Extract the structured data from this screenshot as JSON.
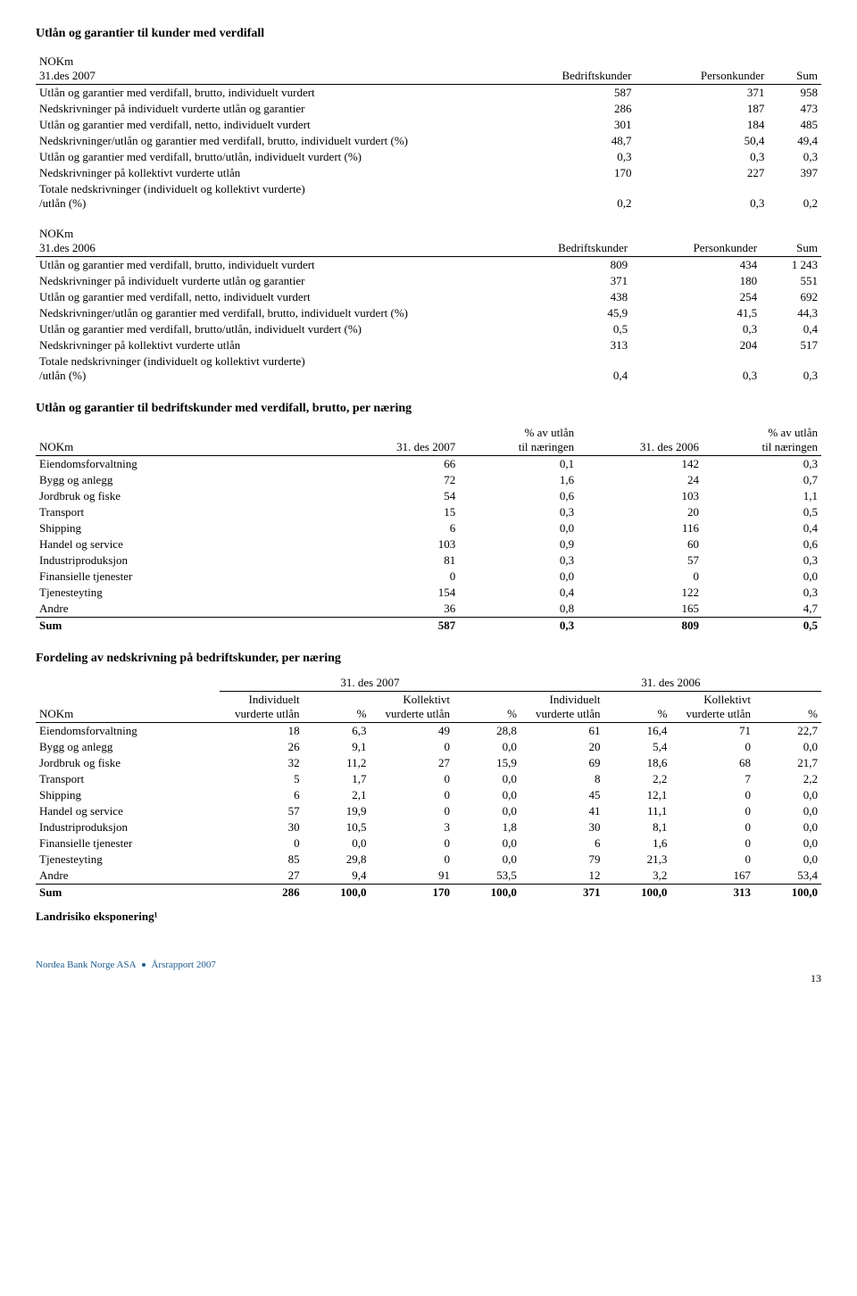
{
  "title": "Utlån og garantier til kunder med verdifall",
  "t1": {
    "unit": "NOKm",
    "period": "31.des 2007",
    "cols": [
      "Bedriftskunder",
      "Personkunder",
      "Sum"
    ],
    "rows": [
      {
        "label": "Utlån og garantier med verdifall, brutto, individuelt vurdert",
        "v": [
          "587",
          "371",
          "958"
        ]
      },
      {
        "label": "Nedskrivninger på individuelt vurderte utlån og garantier",
        "v": [
          "286",
          "187",
          "473"
        ]
      },
      {
        "label": "Utlån og garantier med verdifall, netto, individuelt vurdert",
        "v": [
          "301",
          "184",
          "485"
        ]
      },
      {
        "label": "Nedskrivninger/utlån og garantier med verdifall, brutto, individuelt vurdert (%)",
        "v": [
          "48,7",
          "50,4",
          "49,4"
        ]
      },
      {
        "label": "Utlån og garantier med verdifall, brutto/utlån, individuelt vurdert (%)",
        "v": [
          "0,3",
          "0,3",
          "0,3"
        ]
      },
      {
        "label": "Nedskrivninger på kollektivt vurderte utlån",
        "v": [
          "170",
          "227",
          "397"
        ]
      },
      {
        "label": "Totale nedskrivninger (individuelt og kollektivt vurderte) /utlån (%)",
        "v": [
          "0,2",
          "0,3",
          "0,2"
        ],
        "two": true
      }
    ]
  },
  "t2": {
    "unit": "NOKm",
    "period": "31.des 2006",
    "cols": [
      "Bedriftskunder",
      "Personkunder",
      "Sum"
    ],
    "rows": [
      {
        "label": "Utlån og garantier med verdifall, brutto, individuelt vurdert",
        "v": [
          "809",
          "434",
          "1 243"
        ]
      },
      {
        "label": "Nedskrivninger på individuelt vurderte utlån og garantier",
        "v": [
          "371",
          "180",
          "551"
        ]
      },
      {
        "label": "Utlån og garantier med verdifall, netto, individuelt vurdert",
        "v": [
          "438",
          "254",
          "692"
        ]
      },
      {
        "label": "Nedskrivninger/utlån og garantier med verdifall, brutto, individuelt vurdert (%)",
        "v": [
          "45,9",
          "41,5",
          "44,3"
        ]
      },
      {
        "label": "Utlån og garantier med verdifall, brutto/utlån, individuelt vurdert (%)",
        "v": [
          "0,5",
          "0,3",
          "0,4"
        ]
      },
      {
        "label": "Nedskrivninger på kollektivt vurderte utlån",
        "v": [
          "313",
          "204",
          "517"
        ]
      },
      {
        "label": "Totale nedskrivninger (individuelt og kollektivt vurderte) /utlån (%)",
        "v": [
          "0,4",
          "0,3",
          "0,3"
        ],
        "two": true
      }
    ]
  },
  "t3": {
    "title": "Utlån og garantier til bedriftskunder med verdifall, brutto, per næring",
    "unit": "NOKm",
    "cols": [
      "31. des 2007",
      "% av utlån til næringen",
      "31. des 2006",
      "% av utlån til næringen"
    ],
    "rows": [
      {
        "label": "Eiendomsforvaltning",
        "v": [
          "66",
          "0,1",
          "142",
          "0,3"
        ]
      },
      {
        "label": "Bygg og anlegg",
        "v": [
          "72",
          "1,6",
          "24",
          "0,7"
        ]
      },
      {
        "label": "Jordbruk og fiske",
        "v": [
          "54",
          "0,6",
          "103",
          "1,1"
        ]
      },
      {
        "label": "Transport",
        "v": [
          "15",
          "0,3",
          "20",
          "0,5"
        ]
      },
      {
        "label": "Shipping",
        "v": [
          "6",
          "0,0",
          "116",
          "0,4"
        ]
      },
      {
        "label": "Handel og service",
        "v": [
          "103",
          "0,9",
          "60",
          "0,6"
        ]
      },
      {
        "label": "Industriproduksjon",
        "v": [
          "81",
          "0,3",
          "57",
          "0,3"
        ]
      },
      {
        "label": "Finansielle tjenester",
        "v": [
          "0",
          "0,0",
          "0",
          "0,0"
        ]
      },
      {
        "label": "Tjenesteyting",
        "v": [
          "154",
          "0,4",
          "122",
          "0,3"
        ]
      },
      {
        "label": "Andre",
        "v": [
          "36",
          "0,8",
          "165",
          "4,7"
        ],
        "border": true
      }
    ],
    "sum": {
      "label": "Sum",
      "v": [
        "587",
        "0,3",
        "809",
        "0,5"
      ]
    }
  },
  "t4": {
    "title": "Fordeling av nedskrivning på bedriftskunder, per næring",
    "unit": "NOKm",
    "periodA": "31. des 2007",
    "periodB": "31. des 2006",
    "subA": "Individuelt vurderte utlån",
    "subB": "Kollektivt vurderte utlån",
    "pct": "%",
    "rows": [
      {
        "label": "Eiendomsforvaltning",
        "v": [
          "18",
          "6,3",
          "49",
          "28,8",
          "61",
          "16,4",
          "71",
          "22,7"
        ]
      },
      {
        "label": "Bygg og anlegg",
        "v": [
          "26",
          "9,1",
          "0",
          "0,0",
          "20",
          "5,4",
          "0",
          "0,0"
        ]
      },
      {
        "label": "Jordbruk og fiske",
        "v": [
          "32",
          "11,2",
          "27",
          "15,9",
          "69",
          "18,6",
          "68",
          "21,7"
        ]
      },
      {
        "label": "Transport",
        "v": [
          "5",
          "1,7",
          "0",
          "0,0",
          "8",
          "2,2",
          "7",
          "2,2"
        ]
      },
      {
        "label": "Shipping",
        "v": [
          "6",
          "2,1",
          "0",
          "0,0",
          "45",
          "12,1",
          "0",
          "0,0"
        ]
      },
      {
        "label": "Handel og service",
        "v": [
          "57",
          "19,9",
          "0",
          "0,0",
          "41",
          "11,1",
          "0",
          "0,0"
        ]
      },
      {
        "label": "Industriproduksjon",
        "v": [
          "30",
          "10,5",
          "3",
          "1,8",
          "30",
          "8,1",
          "0",
          "0,0"
        ]
      },
      {
        "label": "Finansielle tjenester",
        "v": [
          "0",
          "0,0",
          "0",
          "0,0",
          "6",
          "1,6",
          "0",
          "0,0"
        ]
      },
      {
        "label": "Tjenesteyting",
        "v": [
          "85",
          "29,8",
          "0",
          "0,0",
          "79",
          "21,3",
          "0",
          "0,0"
        ]
      },
      {
        "label": "Andre",
        "v": [
          "27",
          "9,4",
          "91",
          "53,5",
          "12",
          "3,2",
          "167",
          "53,4"
        ],
        "border": true
      }
    ],
    "sum": {
      "label": "Sum",
      "v": [
        "286",
        "100,0",
        "170",
        "100,0",
        "371",
        "100,0",
        "313",
        "100,0"
      ]
    },
    "note": "Landrisiko eksponering¹"
  },
  "footer": {
    "a": "Nordea Bank Norge ASA",
    "b": "Årsrapport 2007",
    "page": "13"
  }
}
